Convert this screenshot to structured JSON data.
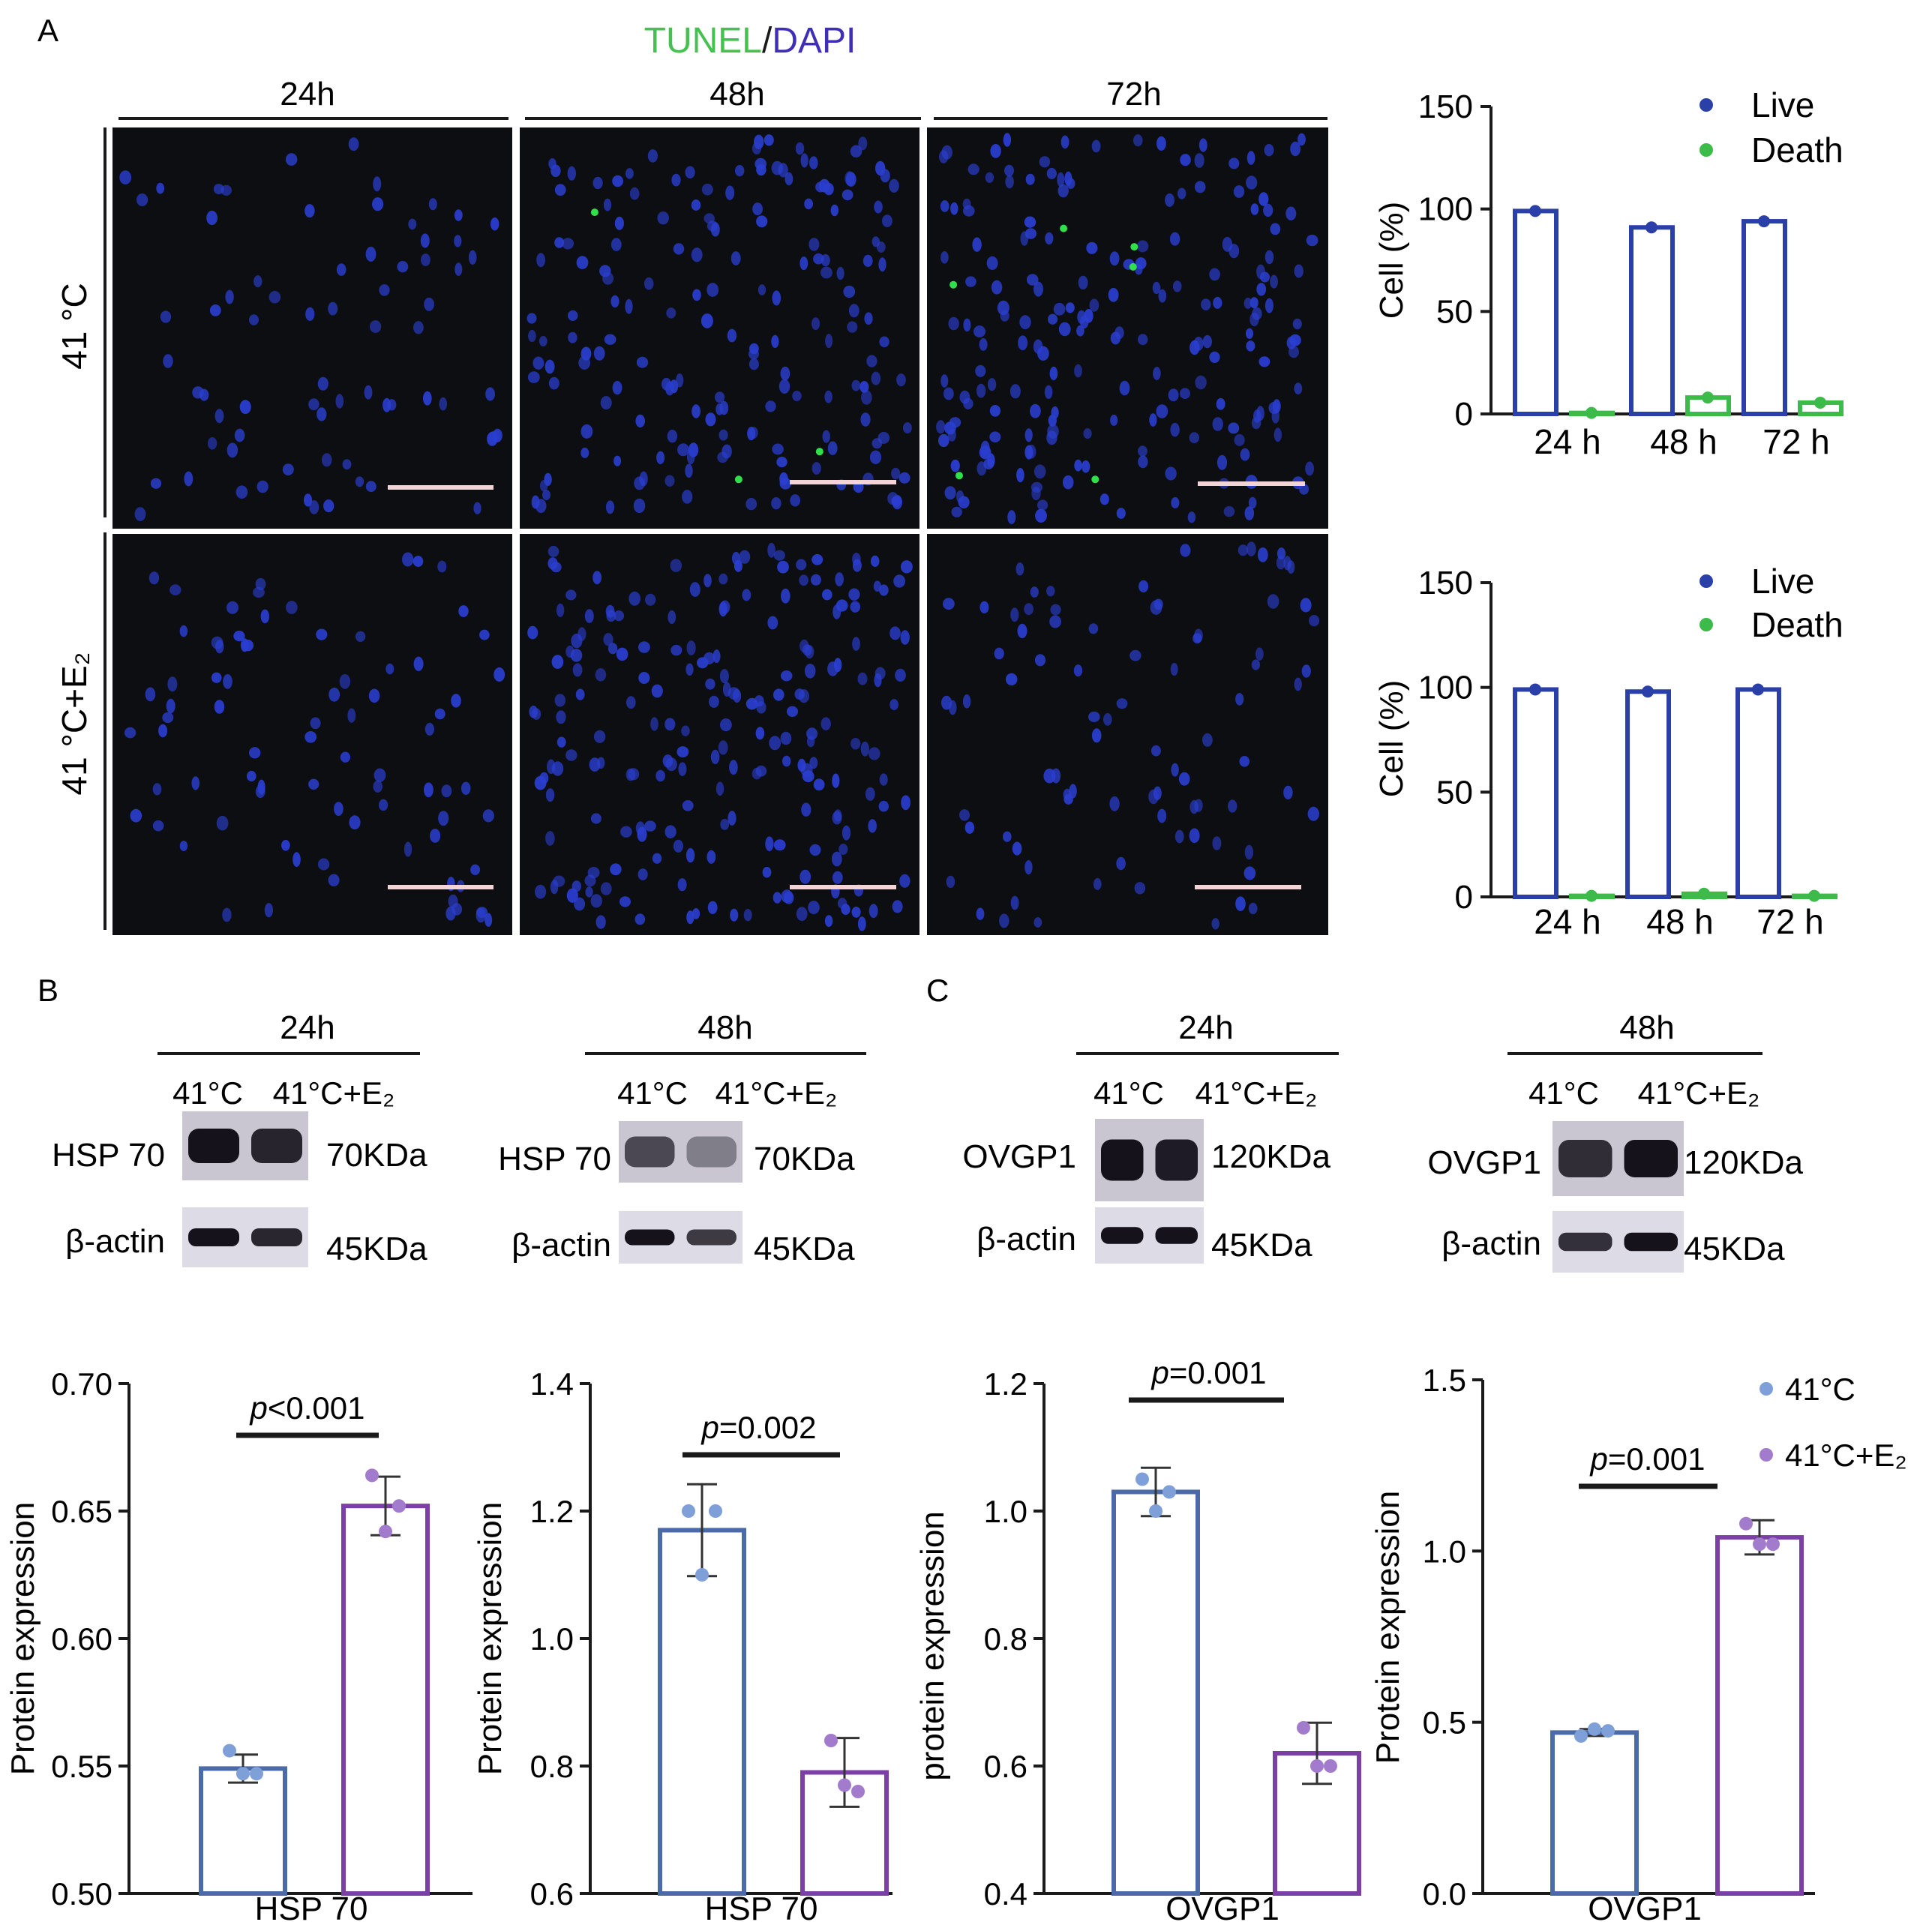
{
  "colors": {
    "blue": "#2b3fa8",
    "green": "#3cba4a",
    "tunel_green": "#44c14f",
    "dapi_blue": "#3f2fb8",
    "bar_blue": "#4a6aa8",
    "bar_purple": "#7b3fa6",
    "dot_blue": "#7e9fd8",
    "dot_purple": "#a27bcc",
    "micro_bg": "#0d0e12",
    "scalebar": "#f2d3d6"
  },
  "panel_letters": {
    "a": "A",
    "b": "B",
    "c": "C"
  },
  "micrographs": {
    "title_tunel": "TUNEL",
    "title_sep": "/",
    "title_dapi": "DAPI",
    "col_labels": [
      "24h",
      "48h",
      "72h"
    ],
    "row_labels": [
      "41 °C",
      "41 °C+E₂"
    ]
  },
  "blots": [
    {
      "time": "24h",
      "lanes": [
        "41°C",
        "41°C+E₂"
      ],
      "protein": "HSP 70",
      "protein_size": "70KDa",
      "control": "β-actin",
      "control_size": "45KDa"
    },
    {
      "time": "48h",
      "lanes": [
        "41°C",
        "41°C+E₂"
      ],
      "protein": "HSP 70",
      "protein_size": "70KDa",
      "control": "β-actin",
      "control_size": "45KDa"
    },
    {
      "time": "24h",
      "lanes": [
        "41°C",
        "41°C+E₂"
      ],
      "protein": "OVGP1",
      "protein_size": "120KDa",
      "control": "β-actin",
      "control_size": "45KDa"
    },
    {
      "time": "48h",
      "lanes": [
        "41°C",
        "41°C+E₂"
      ],
      "protein": "OVGP1",
      "protein_size": "120KDa",
      "control": "β-actin",
      "control_size": "45KDa"
    }
  ],
  "chart_data": [
    {
      "type": "bar",
      "id": "cell-41C",
      "categories": [
        "24 h",
        "48 h",
        "72 h"
      ],
      "series": [
        {
          "name": "Live",
          "values": [
            99,
            91,
            94
          ]
        },
        {
          "name": "Death",
          "values": [
            0.5,
            8,
            5.5
          ]
        }
      ],
      "ylabel": "Cell (%)",
      "ylim": [
        0,
        150
      ],
      "yticks": [
        "0",
        "50",
        "100",
        "150"
      ],
      "legend": [
        "Live",
        "Death"
      ]
    },
    {
      "type": "bar",
      "id": "cell-41C-E2",
      "categories": [
        "24 h",
        "48 h",
        "72 h"
      ],
      "series": [
        {
          "name": "Live",
          "values": [
            99,
            98,
            99
          ]
        },
        {
          "name": "Death",
          "values": [
            0.5,
            1.5,
            0.5
          ]
        }
      ],
      "ylabel": "Cell (%)",
      "ylim": [
        0,
        150
      ],
      "yticks": [
        "0",
        "50",
        "100",
        "150"
      ],
      "legend": [
        "Live",
        "Death"
      ]
    },
    {
      "type": "bar",
      "id": "hsp70-24h",
      "xlabel": "HSP 70",
      "ylabel": "Protein expression",
      "ylim": [
        0.5,
        0.7
      ],
      "yticks": [
        "0.50",
        "0.55",
        "0.60",
        "0.65",
        "0.70"
      ],
      "series": [
        {
          "name": "41°C",
          "mean": 0.549,
          "sd": 0.0055,
          "points": [
            0.556,
            0.547,
            0.547
          ]
        },
        {
          "name": "41°C+E₂",
          "mean": 0.652,
          "sd": 0.0115,
          "points": [
            0.664,
            0.652,
            0.642
          ]
        }
      ],
      "p_value": "<0.001"
    },
    {
      "type": "bar",
      "id": "hsp70-48h",
      "xlabel": "HSP 70",
      "ylabel": "Protein expression",
      "ylim": [
        0.6,
        1.4
      ],
      "yticks": [
        "0.6",
        "0.8",
        "1.0",
        "1.2",
        "1.4"
      ],
      "series": [
        {
          "name": "41°C",
          "mean": 1.17,
          "sd": 0.072,
          "points": [
            1.2,
            1.2,
            1.1
          ]
        },
        {
          "name": "41°C+E₂",
          "mean": 0.79,
          "sd": 0.054,
          "points": [
            0.84,
            0.76,
            0.77
          ]
        }
      ],
      "p_value": "=0.002"
    },
    {
      "type": "bar",
      "id": "ovgp1-24h",
      "xlabel": "OVGP1",
      "ylabel": "protein expression",
      "ylim": [
        0.4,
        1.2
      ],
      "yticks": [
        "0.4",
        "0.6",
        "0.8",
        "1.0",
        "1.2"
      ],
      "series": [
        {
          "name": "41°C",
          "mean": 1.03,
          "sd": 0.038,
          "points": [
            1.05,
            1.03,
            1.0
          ]
        },
        {
          "name": "41°C+E₂",
          "mean": 0.62,
          "sd": 0.048,
          "points": [
            0.66,
            0.6,
            0.6
          ]
        }
      ],
      "p_value": "=0.001"
    },
    {
      "type": "bar",
      "id": "ovgp1-48h",
      "xlabel": "OVGP1",
      "ylabel": "Protein expression",
      "ylim": [
        0,
        1.5
      ],
      "yticks": [
        "0.0",
        "0.5",
        "1.0",
        "1.5"
      ],
      "series": [
        {
          "name": "41°C",
          "mean": 0.47,
          "sd": 0.01,
          "points": [
            0.46,
            0.475,
            0.48
          ]
        },
        {
          "name": "41°C+E₂",
          "mean": 1.04,
          "sd": 0.05,
          "points": [
            1.08,
            1.02,
            1.02
          ]
        }
      ],
      "p_value": "=0.001",
      "legend": [
        "41°C",
        "41°C+E₂"
      ]
    }
  ]
}
